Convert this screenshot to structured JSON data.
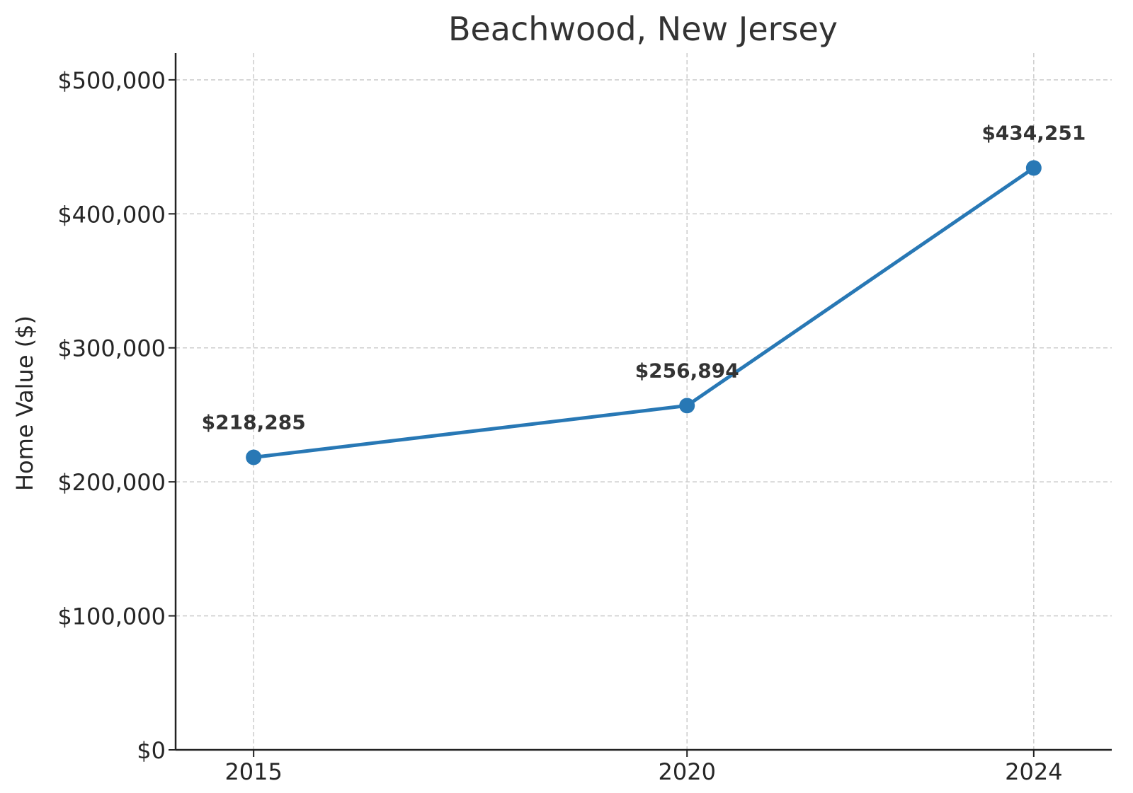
{
  "chart_data": {
    "type": "line",
    "title": "Beachwood, New Jersey",
    "xlabel": "",
    "ylabel": "Home Value ($)",
    "categories": [
      "2015",
      "2020",
      "2024"
    ],
    "x": [
      2015,
      2020,
      2024
    ],
    "series": [
      {
        "values": [
          218285,
          256894,
          434251
        ],
        "data_labels": [
          "$218,285",
          "$256,894",
          "$434,251"
        ],
        "color": "#2878b5"
      }
    ],
    "ylim": [
      0,
      520000
    ],
    "y_ticks": [
      0,
      100000,
      200000,
      300000,
      400000,
      500000
    ],
    "y_tick_labels": [
      "$0",
      "$100,000",
      "$200,000",
      "$300,000",
      "$400,000",
      "$500,000"
    ],
    "x_tick_labels": [
      "2015",
      "2020",
      "2024"
    ],
    "grid": true
  }
}
